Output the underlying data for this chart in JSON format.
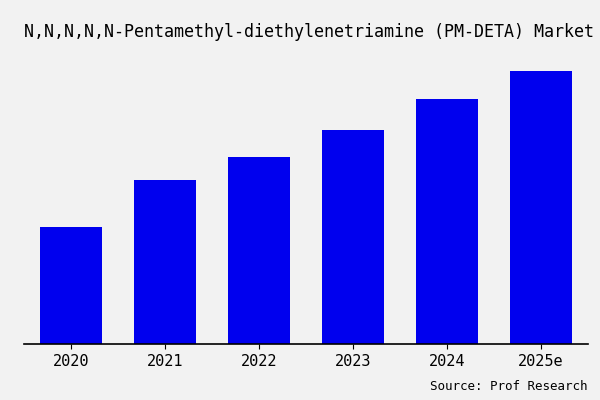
{
  "title": "N,N,N,N,N-Pentamethyl-diethylenetriamine (PM-DETA) Market (Million",
  "categories": [
    "2020",
    "2021",
    "2022",
    "2023",
    "2024",
    "2025e"
  ],
  "values": [
    30,
    42,
    48,
    55,
    63,
    70
  ],
  "bar_color": "#0000EE",
  "background_color": "#F2F2F2",
  "plot_background_color": "#F2F2F2",
  "source_text": "Source: Prof Research",
  "title_fontsize": 12,
  "tick_fontsize": 11,
  "source_fontsize": 9,
  "bar_width": 0.65,
  "ylim": [
    0,
    76
  ]
}
